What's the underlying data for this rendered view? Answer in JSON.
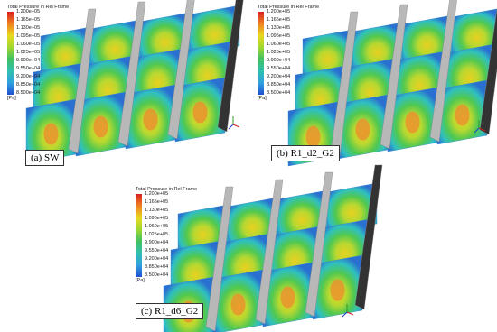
{
  "panels": [
    {
      "legend": {
        "title": "Total Pressure in Rel Frame",
        "labels": [
          "1.200e+05",
          "1.165e+05",
          "1.130e+05",
          "1.095e+05",
          "1.060e+05",
          "1.025e+05",
          "9.900e+04",
          "9.550e+04",
          "9.200e+04",
          "8.850e+04",
          "8.500e+04"
        ],
        "unit": "[Pa]"
      },
      "caption": "(a) SW"
    },
    {
      "legend": {
        "title": "Total Pressure in Rel Frame",
        "labels": [
          "1.200e+05",
          "1.165e+05",
          "1.130e+05",
          "1.095e+05",
          "1.060e+05",
          "1.025e+05",
          "9.900e+04",
          "9.550e+04",
          "9.200e+04",
          "8.850e+04",
          "8.500e+04"
        ],
        "unit": "[Pa]"
      },
      "caption": "(b) R1_d2_G2"
    },
    {
      "legend": {
        "title": "Total Pressure in Rel Frame",
        "labels": [
          "1.200e+05",
          "1.165e+05",
          "1.130e+05",
          "1.095e+05",
          "1.060e+05",
          "1.025e+05",
          "9.900e+04",
          "9.550e+04",
          "9.200e+04",
          "8.850e+04",
          "8.500e+04"
        ],
        "unit": "[Pa]"
      },
      "caption": "(c) R1_d6_G2"
    }
  ]
}
